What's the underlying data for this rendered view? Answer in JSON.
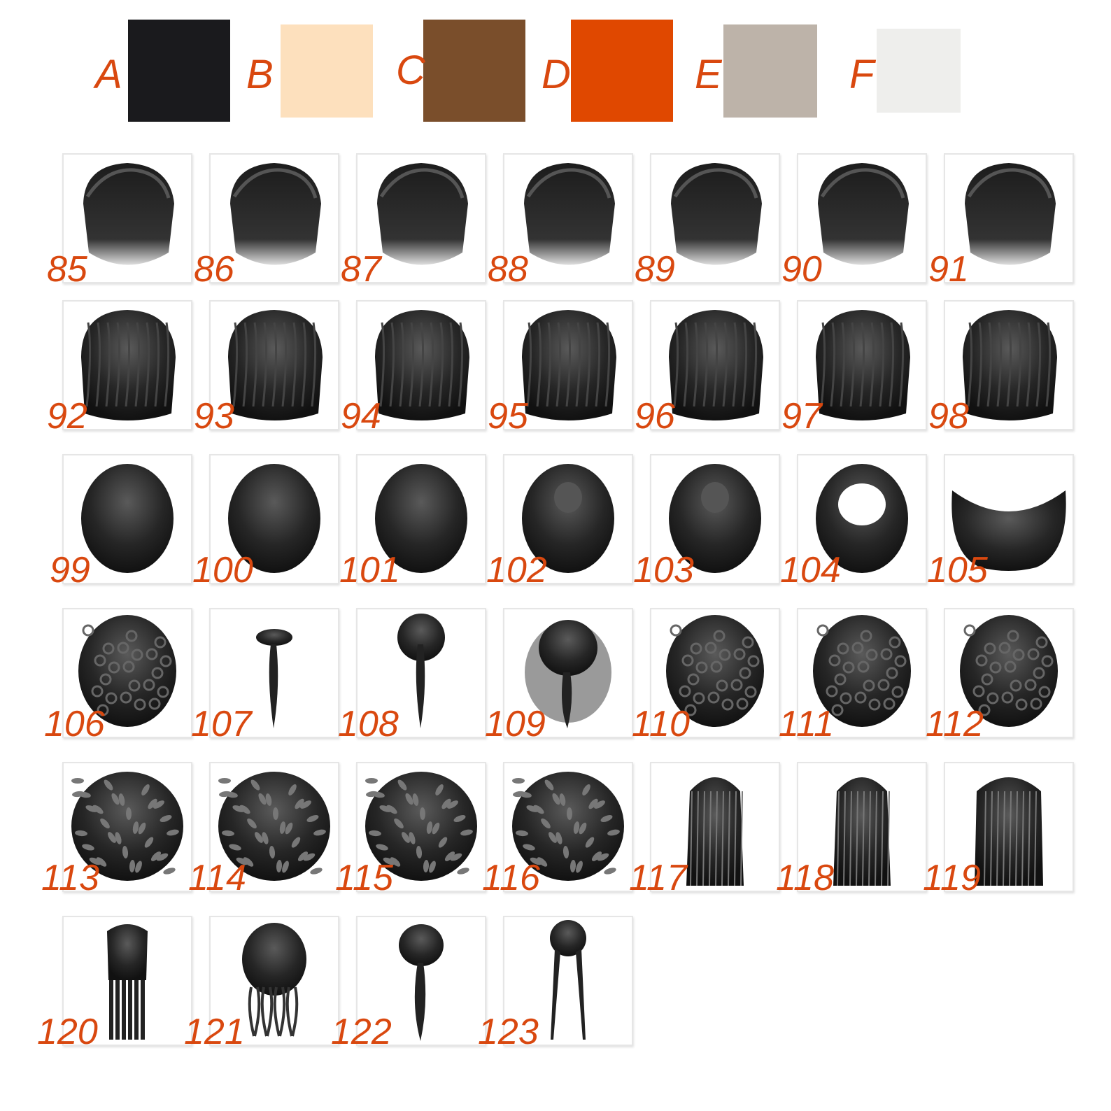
{
  "swatches": [
    {
      "label": "A",
      "color": "#1a1a1d"
    },
    {
      "label": "B",
      "color": "#fde0bd"
    },
    {
      "label": "C",
      "color": "#7a4e2b"
    },
    {
      "label": "D",
      "color": "#e04800"
    },
    {
      "label": "E",
      "color": "#bdb3a9"
    },
    {
      "label": "F",
      "color": "#eeeeec"
    }
  ],
  "label_color": "#d9480f",
  "hairstyles": [
    {
      "number": "85",
      "icon": "short-textured-hair-icon"
    },
    {
      "number": "86",
      "icon": "short-swept-hair-icon"
    },
    {
      "number": "87",
      "icon": "short-crown-hair-icon"
    },
    {
      "number": "88",
      "icon": "short-spiky-hair-icon"
    },
    {
      "number": "89",
      "icon": "short-layered-hair-icon"
    },
    {
      "number": "90",
      "icon": "undercut-hair-icon"
    },
    {
      "number": "91",
      "icon": "messy-fade-hair-icon"
    },
    {
      "number": "92",
      "icon": "wavy-fade-hair-icon"
    },
    {
      "number": "93",
      "icon": "top-bun-hair-icon"
    },
    {
      "number": "94",
      "icon": "choppy-hair-icon"
    },
    {
      "number": "95",
      "icon": "swirl-hair-icon"
    },
    {
      "number": "96",
      "icon": "shaggy-hair-icon"
    },
    {
      "number": "97",
      "icon": "textured-crop-hair-icon"
    },
    {
      "number": "98",
      "icon": "straight-crop-hair-icon"
    },
    {
      "number": "99",
      "icon": "bowl-hair-icon"
    },
    {
      "number": "100",
      "icon": "smooth-round-hair-icon"
    },
    {
      "number": "101",
      "icon": "buzz-cut-hair-icon"
    },
    {
      "number": "102",
      "icon": "center-bun-hair-icon"
    },
    {
      "number": "103",
      "icon": "ponytail-hair-icon"
    },
    {
      "number": "104",
      "icon": "crown-ring-hair-icon"
    },
    {
      "number": "105",
      "icon": "horseshoe-hair-icon"
    },
    {
      "number": "106",
      "icon": "curly-hair-icon"
    },
    {
      "number": "107",
      "icon": "thin-braid-hair-icon"
    },
    {
      "number": "108",
      "icon": "small-braid-hair-icon"
    },
    {
      "number": "109",
      "icon": "french-braid-hair-icon"
    },
    {
      "number": "110",
      "icon": "twists-top-hair-icon"
    },
    {
      "number": "111",
      "icon": "coily-afro-hair-icon"
    },
    {
      "number": "112",
      "icon": "tight-curls-hair-icon"
    },
    {
      "number": "113",
      "icon": "short-locs-hair-icon"
    },
    {
      "number": "114",
      "icon": "coil-round-hair-icon"
    },
    {
      "number": "115",
      "icon": "bantu-twists-hair-icon"
    },
    {
      "number": "116",
      "icon": "afro-hair-icon"
    },
    {
      "number": "117",
      "icon": "long-straight-hair-icon"
    },
    {
      "number": "118",
      "icon": "long-layered-hair-icon"
    },
    {
      "number": "119",
      "icon": "long-sleek-hair-icon"
    },
    {
      "number": "120",
      "icon": "box-braids-hair-icon"
    },
    {
      "number": "121",
      "icon": "messy-updo-hair-icon"
    },
    {
      "number": "122",
      "icon": "single-braid-hair-icon"
    },
    {
      "number": "123",
      "icon": "two-braids-hair-icon"
    }
  ]
}
